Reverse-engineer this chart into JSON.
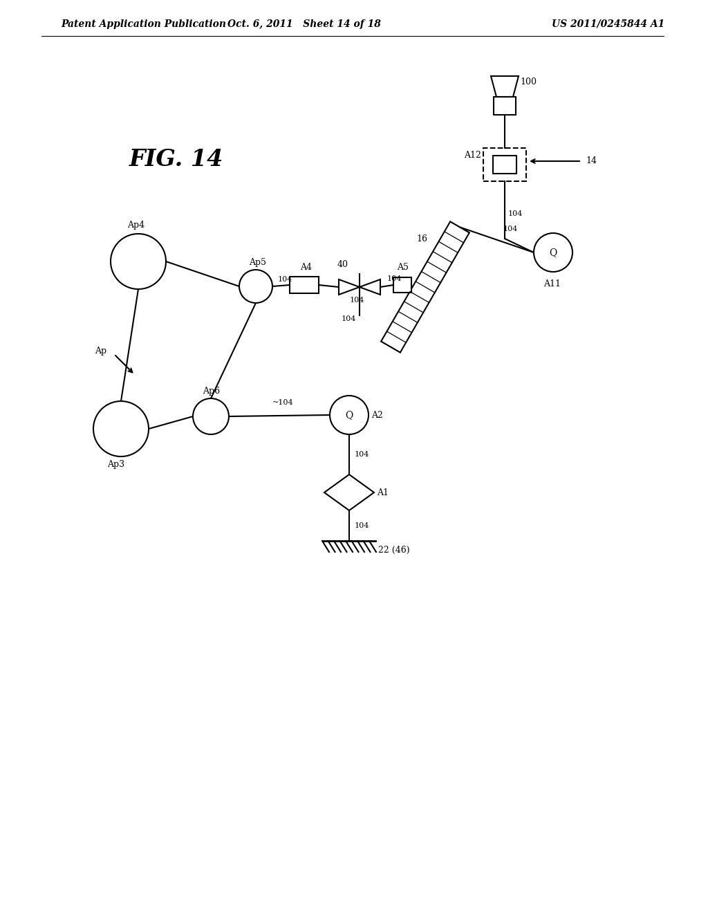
{
  "bg_color": "#ffffff",
  "line_color": "#000000",
  "header_left": "Patent Application Publication",
  "header_mid": "Oct. 6, 2011   Sheet 14 of 18",
  "header_right": "US 2011/0245844 A1",
  "fig_label": "FIG. 14",
  "header_fontsize": 10
}
